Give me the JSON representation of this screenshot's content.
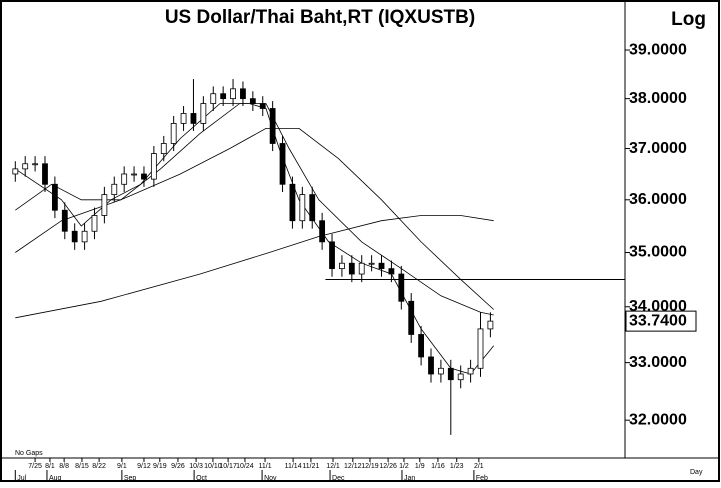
{
  "chart_data": {
    "type": "candlestick",
    "title": "US  Dollar/Thai Baht,RT  (IQXUSTB)",
    "scale_label": "Log",
    "gap_note": "No Gaps",
    "period_label": "Day",
    "log_scale": true,
    "xlim": [
      0,
      185.8
    ],
    "ylim": [
      31.36,
      39.95
    ],
    "yticks": [
      {
        "value": 32,
        "label": "32.0000"
      },
      {
        "value": 33,
        "label": "33.0000"
      },
      {
        "value": 34,
        "label": "34.0000"
      },
      {
        "value": 35,
        "label": "35.0000"
      },
      {
        "value": 36,
        "label": "36.0000"
      },
      {
        "value": 37,
        "label": "37.0000"
      },
      {
        "value": 38,
        "label": "38.0000"
      },
      {
        "value": 39,
        "label": "39.0000"
      }
    ],
    "xticks": [
      {
        "value": 7,
        "label": "7/25"
      },
      {
        "value": 11.5,
        "label": "8/1"
      },
      {
        "value": 15.8,
        "label": "8/8"
      },
      {
        "value": 21.2,
        "label": "8/15"
      },
      {
        "value": 26.4,
        "label": "8/22"
      },
      {
        "value": 33.3,
        "label": "9/1"
      },
      {
        "value": 40,
        "label": "9/12"
      },
      {
        "value": 44.8,
        "label": "9/19"
      },
      {
        "value": 50.3,
        "label": "9/26"
      },
      {
        "value": 55.8,
        "label": "10/3"
      },
      {
        "value": 60.9,
        "label": "10/10"
      },
      {
        "value": 65.5,
        "label": "10/17"
      },
      {
        "value": 70.6,
        "label": "10/24"
      },
      {
        "value": 76.7,
        "label": "11/1"
      },
      {
        "value": 85.2,
        "label": "11/14"
      },
      {
        "value": 90.6,
        "label": "11/21"
      },
      {
        "value": 97.3,
        "label": "12/1"
      },
      {
        "value": 103.3,
        "label": "12/12"
      },
      {
        "value": 108.5,
        "label": "12/19"
      },
      {
        "value": 114,
        "label": "12/26"
      },
      {
        "value": 118.8,
        "label": "1/2"
      },
      {
        "value": 123.6,
        "label": "1/9"
      },
      {
        "value": 129.1,
        "label": "1/16"
      },
      {
        "value": 134.8,
        "label": "1/23"
      },
      {
        "value": 141.5,
        "label": "2/1"
      }
    ],
    "month_ticks": [
      {
        "value": 1,
        "label": "Jul"
      },
      {
        "value": 10.6,
        "label": "Aug"
      },
      {
        "value": 33.3,
        "label": "Sep"
      },
      {
        "value": 55.2,
        "label": "Oct"
      },
      {
        "value": 75.8,
        "label": "Nov"
      },
      {
        "value": 96.4,
        "label": "Dec"
      },
      {
        "value": 118.2,
        "label": "Jan"
      },
      {
        "value": 140,
        "label": "Feb"
      }
    ],
    "x": [
      1,
      4,
      7,
      10,
      13,
      16,
      19,
      22,
      25,
      28,
      31,
      34,
      37,
      40,
      43,
      46,
      49,
      52,
      55,
      58,
      61,
      64,
      67,
      70,
      73,
      76,
      79,
      82,
      85,
      88,
      91,
      94,
      97,
      100,
      103,
      106,
      109,
      112,
      115,
      118,
      121,
      124,
      127,
      130,
      133,
      136,
      139,
      142,
      145
    ],
    "open": [
      36.5,
      36.6,
      36.7,
      36.7,
      36.3,
      35.8,
      35.4,
      35.2,
      35.4,
      35.7,
      36.1,
      36.3,
      36.5,
      36.5,
      36.4,
      36.9,
      37.1,
      37.5,
      37.7,
      37.5,
      37.9,
      38.1,
      38.0,
      38.2,
      38.0,
      37.9,
      37.8,
      37.1,
      36.3,
      35.6,
      36.1,
      35.6,
      35.2,
      34.7,
      34.8,
      34.6,
      34.8,
      34.8,
      34.7,
      34.6,
      34.1,
      33.5,
      33.1,
      32.8,
      32.9,
      32.7,
      32.8,
      32.9,
      33.6
    ],
    "high": [
      36.75,
      36.85,
      36.85,
      36.85,
      36.45,
      35.95,
      35.55,
      35.55,
      35.85,
      36.25,
      36.45,
      36.65,
      36.65,
      36.65,
      37.05,
      37.25,
      37.65,
      37.85,
      38.4,
      38.05,
      38.25,
      38.25,
      38.4,
      38.35,
      38.15,
      38.05,
      37.95,
      37.25,
      36.45,
      36.25,
      36.25,
      35.75,
      35.35,
      34.95,
      34.95,
      34.95,
      34.95,
      34.95,
      34.85,
      34.75,
      34.25,
      33.65,
      33.25,
      33.05,
      33.05,
      32.95,
      33.05,
      33.9,
      33.9
    ],
    "low": [
      36.35,
      36.45,
      36.55,
      36.15,
      35.65,
      35.25,
      35.05,
      35.05,
      35.25,
      35.55,
      35.95,
      36.15,
      36.35,
      36.25,
      36.25,
      36.75,
      36.95,
      37.35,
      37.35,
      37.35,
      37.75,
      37.85,
      37.85,
      37.85,
      37.75,
      37.65,
      36.95,
      36.15,
      35.45,
      35.45,
      35.45,
      35.05,
      34.55,
      34.55,
      34.45,
      34.45,
      34.65,
      34.55,
      34.45,
      33.95,
      33.35,
      32.95,
      32.65,
      32.65,
      31.75,
      32.55,
      32.65,
      32.75,
      33.45
    ],
    "close": [
      36.6,
      36.7,
      36.7,
      36.3,
      35.8,
      35.4,
      35.2,
      35.4,
      35.7,
      36.1,
      36.3,
      36.5,
      36.5,
      36.4,
      36.9,
      37.1,
      37.5,
      37.7,
      37.5,
      37.9,
      38.1,
      38.0,
      38.2,
      38.0,
      37.9,
      37.8,
      37.1,
      36.3,
      35.6,
      36.1,
      35.6,
      35.2,
      34.7,
      34.8,
      34.6,
      34.8,
      34.8,
      34.7,
      34.6,
      34.1,
      33.5,
      33.1,
      32.8,
      32.9,
      32.7,
      32.8,
      32.9,
      33.6,
      33.74
    ],
    "last_value_label": "33.7400",
    "color": "#000000",
    "lines": [
      {
        "x": [
          1,
          15,
          21,
          30,
          39,
          51,
          63,
          72,
          77,
          81,
          87,
          96,
          106,
          115,
          124,
          133,
          139,
          146
        ],
        "values": [
          36.6,
          36.0,
          35.5,
          36.0,
          36.3,
          37.2,
          37.9,
          37.9,
          37.8,
          37.0,
          36.0,
          35.2,
          34.8,
          34.6,
          33.6,
          32.9,
          32.8,
          33.3
        ]
      },
      {
        "x": [
          1,
          12,
          21,
          33,
          45,
          57,
          69,
          77,
          84,
          93,
          106,
          118,
          130,
          142,
          146
        ],
        "values": [
          35.8,
          36.3,
          36.0,
          36.0,
          36.6,
          37.3,
          37.9,
          37.9,
          37.0,
          36.0,
          35.2,
          34.7,
          34.2,
          33.9,
          33.85
        ]
      },
      {
        "x": [
          1,
          15,
          33,
          51,
          66,
          77,
          87,
          99,
          112,
          124,
          136,
          146
        ],
        "values": [
          35.0,
          35.6,
          36.0,
          36.5,
          37.0,
          37.4,
          37.4,
          36.8,
          36.0,
          35.2,
          34.5,
          33.95
        ]
      },
      {
        "x": [
          1,
          27,
          57,
          78,
          93,
          112,
          124,
          136,
          146
        ],
        "values": [
          33.8,
          34.1,
          34.6,
          35.0,
          35.3,
          35.6,
          35.7,
          35.7,
          35.6
        ]
      }
    ],
    "hline": {
      "value": 34.5,
      "x_start": 95
    }
  }
}
